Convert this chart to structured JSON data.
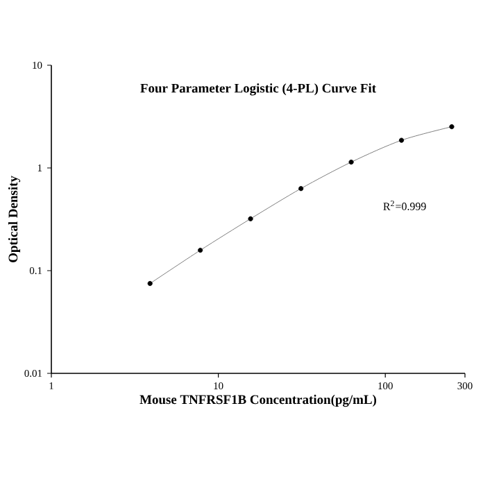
{
  "chart_data": {
    "type": "scatter",
    "title": "Four Parameter Logistic (4-PL) Curve Fit",
    "xlabel": "Mouse TNFRSF1B Concentration(pg/mL)",
    "ylabel": "Optical Density",
    "log": "xy",
    "xlim": [
      1,
      300
    ],
    "ylim": [
      0.01,
      10
    ],
    "xticks": [
      1,
      10,
      100,
      300
    ],
    "yticks": [
      0.01,
      0.1,
      1,
      10
    ],
    "annotations": [
      "R$^{2}$=0.999"
    ],
    "series": [
      {
        "type": "line",
        "color": "#808080",
        "marker": "none",
        "x": [
          3.9,
          7.8,
          15.6,
          31.25,
          62.5,
          125,
          250
        ],
        "values": [
          0.075,
          0.158,
          0.32,
          0.63,
          1.14,
          1.86,
          2.52
        ]
      },
      {
        "color": "#000000",
        "marker": "circle",
        "x": [
          3.9,
          7.8,
          15.6,
          31.25,
          62.5,
          125,
          250
        ],
        "values": [
          0.075,
          0.158,
          0.32,
          0.63,
          1.14,
          1.86,
          2.52
        ]
      }
    ]
  }
}
